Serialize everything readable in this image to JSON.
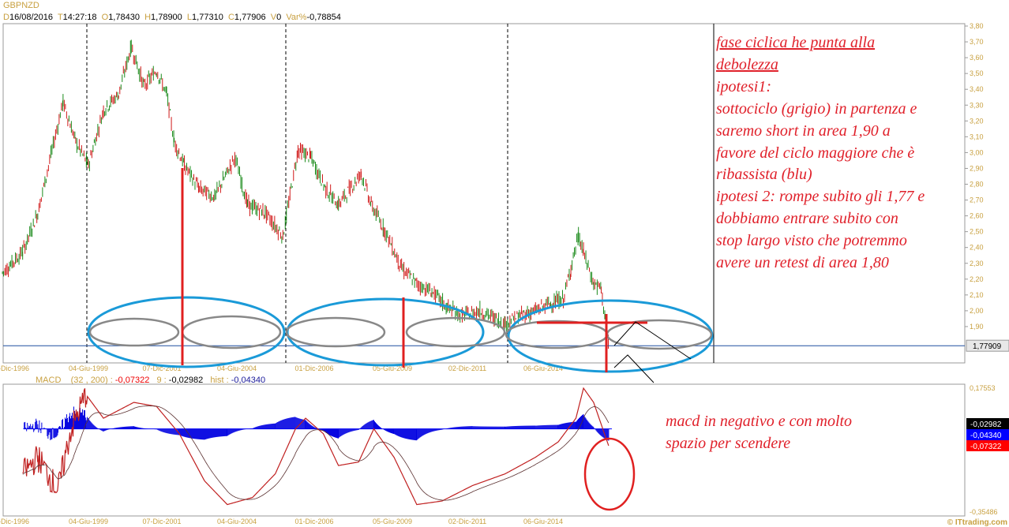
{
  "header": {
    "symbol": "GBPNZD",
    "date_label": "D",
    "date": "16/08/2016",
    "time_label": "T",
    "time": "14:27:18",
    "open_label": "O",
    "open": "1,78430",
    "high_label": "H",
    "high": "1,78900",
    "low_label": "L",
    "low": "1,77310",
    "close_label": "C",
    "close": "1,77906",
    "volume_label": "V",
    "volume": "0",
    "var_label": "Var%",
    "var": "-0,78854"
  },
  "macd_header": {
    "label": "MACD",
    "params": "(32 , 200) :",
    "macd": "-0,07322",
    "signal_label": "9 :",
    "signal": "-0,02982",
    "hist_label": "hist :",
    "hist": "-0,04340"
  },
  "chart_data": [
    {
      "type": "candlestick",
      "title": "GBPNZD",
      "ylim": [
        1.7,
        3.85
      ],
      "y_ticks": [
        "1,90",
        "2,00",
        "2,10",
        "2,20",
        "2,30",
        "2,40",
        "2,50",
        "2,60",
        "2,70",
        "2,80",
        "2,90",
        "3,00",
        "3,10",
        "3,20",
        "3,30",
        "3,40",
        "3,50",
        "3,60",
        "3,70",
        "3,80"
      ],
      "x_ticks": [
        "-Dic-1996",
        "04-Giu-1999",
        "07-Dic-2001",
        "04-Giu-2004",
        "01-Dic-2006",
        "05-Giu-2009",
        "02-Dic-2011",
        "06-Giu-2014"
      ],
      "last_price": "1,77909",
      "colors": {
        "up": "#1a8a1a",
        "down": "#d01818",
        "last_line": "#1f4fa0"
      },
      "series": [
        [
          "1996-08",
          2.24
        ],
        [
          "1997-04",
          2.37
        ],
        [
          "1997-10",
          2.62
        ],
        [
          "1998-08",
          3.32
        ],
        [
          "1999-01",
          3.07
        ],
        [
          "1999-06",
          2.92
        ],
        [
          "1999-12",
          3.27
        ],
        [
          "2000-06",
          3.37
        ],
        [
          "2000-11",
          3.67
        ],
        [
          "2001-04",
          3.42
        ],
        [
          "2001-09",
          3.52
        ],
        [
          "2002-01",
          3.37
        ],
        [
          "2002-04",
          3.07
        ],
        [
          "2002-08",
          2.92
        ],
        [
          "2003-02",
          2.77
        ],
        [
          "2003-08",
          2.72
        ],
        [
          "2004-04",
          2.97
        ],
        [
          "2004-09",
          2.67
        ],
        [
          "2005-04",
          2.62
        ],
        [
          "2005-11",
          2.47
        ],
        [
          "2006-05",
          3.02
        ],
        [
          "2006-10",
          2.97
        ],
        [
          "2007-04",
          2.77
        ],
        [
          "2007-09",
          2.67
        ],
        [
          "2008-06",
          2.87
        ],
        [
          "2008-10",
          2.67
        ],
        [
          "2009-03",
          2.52
        ],
        [
          "2009-10",
          2.27
        ],
        [
          "2010-04",
          2.17
        ],
        [
          "2010-10",
          2.12
        ],
        [
          "2011-04",
          2.02
        ],
        [
          "2011-10",
          1.97
        ],
        [
          "2012-05",
          2.0
        ],
        [
          "2012-11",
          1.95
        ],
        [
          "2013-03",
          1.92
        ],
        [
          "2013-09",
          1.97
        ],
        [
          "2014-03",
          2.0
        ],
        [
          "2014-09",
          2.05
        ],
        [
          "2015-02",
          2.07
        ],
        [
          "2015-05",
          2.27
        ],
        [
          "2015-08",
          2.47
        ],
        [
          "2015-10",
          2.37
        ],
        [
          "2016-02",
          2.17
        ],
        [
          "2016-05",
          2.14
        ],
        [
          "2016-08",
          1.78
        ]
      ]
    },
    {
      "type": "line",
      "title": "MACD (32, 200)",
      "ylim": [
        -0.35486,
        0.17553
      ],
      "y_ticks": [
        "0,17553",
        "-0,35486"
      ],
      "x_ticks": [
        "-Dic-1996",
        "04-Giu-1999",
        "07-Dic-2001",
        "04-Giu-2004",
        "01-Dic-2006",
        "05-Giu-2009",
        "02-Dic-2011",
        "06-Giu-2014"
      ],
      "last_values": [
        {
          "value": "-0,02982",
          "color": "#000000"
        },
        {
          "value": "-0,04340",
          "color": "#0000ff"
        },
        {
          "value": "-0,07322",
          "color": "#ff0000"
        }
      ],
      "series": [
        {
          "values": [
            [
              "1997-04",
              -0.19
            ],
            [
              "1997-10",
              -0.12
            ],
            [
              "1998-06",
              -0.26
            ],
            [
              "1998-11",
              -0.01
            ],
            [
              "1999-05",
              0.146
            ],
            [
              "1999-12",
              0.045
            ],
            [
              "2000-12",
              0.112
            ],
            [
              "2001-09",
              0.095
            ],
            [
              "2002-06",
              -0.02
            ],
            [
              "2003-04",
              -0.22
            ],
            [
              "2004-01",
              -0.32
            ],
            [
              "2004-11",
              -0.29
            ],
            [
              "2005-08",
              -0.19
            ],
            [
              "2006-04",
              0.0
            ],
            [
              "2006-08",
              0.045
            ],
            [
              "2007-03",
              -0.02
            ],
            [
              "2007-09",
              -0.155
            ],
            [
              "2008-05",
              -0.14
            ],
            [
              "2008-11",
              0.0
            ],
            [
              "2009-07",
              -0.12
            ],
            [
              "2010-04",
              -0.32
            ],
            [
              "2011-02",
              -0.305
            ],
            [
              "2012-02",
              -0.24
            ],
            [
              "2013-03",
              -0.19
            ],
            [
              "2014-03",
              -0.12
            ],
            [
              "2014-12",
              -0.055
            ],
            [
              "2015-07",
              0.045
            ],
            [
              "2015-10",
              0.172
            ],
            [
              "2016-02",
              0.112
            ],
            [
              "2016-08",
              -0.073
            ]
          ]
        }
      ]
    }
  ],
  "annotations": {
    "main_text": [
      "fase ciclica he punta alla",
      "debolezza",
      "ipotesi1:",
      "sottociclo (grigio) in partenza e",
      "saremo short in area 1,90 a",
      "favore del ciclo maggiore che è",
      "ribassista (blu)",
      "ipotesi 2: rompe subito gli 1,77 e",
      "dobbiamo entrare subito con",
      "stop largo visto che potremmo",
      "avere un retest di area 1,80"
    ],
    "macd_text": [
      "macd in negativo e con molto",
      "spazio per scendere"
    ]
  },
  "footer": {
    "brand": "© ITtrading.com"
  }
}
